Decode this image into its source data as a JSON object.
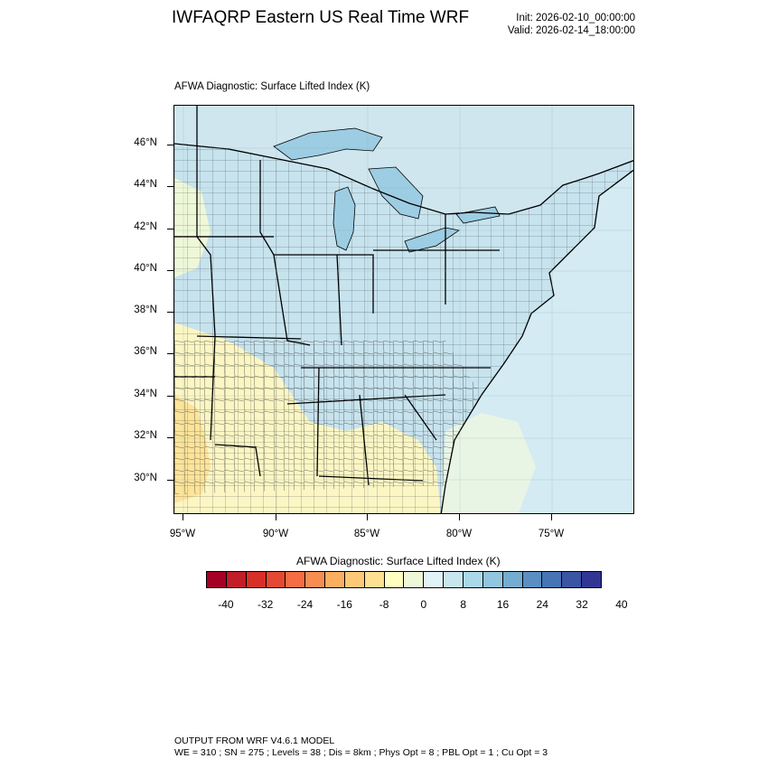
{
  "header": {
    "title": "IWFAQRP Eastern US Real Time WRF",
    "init": "Init: 2026-02-10_00:00:00",
    "valid": "Valid: 2026-02-14_18:00:00"
  },
  "map": {
    "title": "AFWA Diagnostic: Surface Lifted Index   (K)",
    "lat_labels": [
      "46°N",
      "44°N",
      "42°N",
      "40°N",
      "38°N",
      "36°N",
      "34°N",
      "32°N",
      "30°N"
    ],
    "lon_labels": [
      "95°W",
      "90°W",
      "85°W",
      "80°W",
      "75°W"
    ],
    "colors": {
      "land_main": "#c7e3ee",
      "land_light": "#dcf0f3",
      "lake": "#9dcde3",
      "ocean": "#d4ebf3",
      "warm_yellow": "#fbf6c4",
      "warm_orange": "#fde49a",
      "greenish": "#e9f5e4"
    }
  },
  "colorbar": {
    "title": "AFWA Diagnostic: Surface Lifted Index  (K)",
    "colors": [
      "#a50026",
      "#c11e27",
      "#d73027",
      "#e34933",
      "#f46d43",
      "#f88d52",
      "#fdae61",
      "#fec877",
      "#fee090",
      "#ffffbf",
      "#eef8d8",
      "#e0f3f8",
      "#c8e6f0",
      "#abd9e9",
      "#92c5de",
      "#74add1",
      "#5b8fc2",
      "#4575b4",
      "#3b55a4",
      "#313695"
    ],
    "labels": [
      "-40",
      "-32",
      "-24",
      "-16",
      "-8",
      "0",
      "8",
      "16",
      "24",
      "32",
      "40"
    ]
  },
  "footer": {
    "line1": "OUTPUT FROM WRF V4.6.1 MODEL",
    "line2": "WE = 310 ; SN = 275 ; Levels = 38 ; Dis = 8km ; Phys Opt = 8 ; PBL Opt = 1 ; Cu Opt = 3"
  }
}
